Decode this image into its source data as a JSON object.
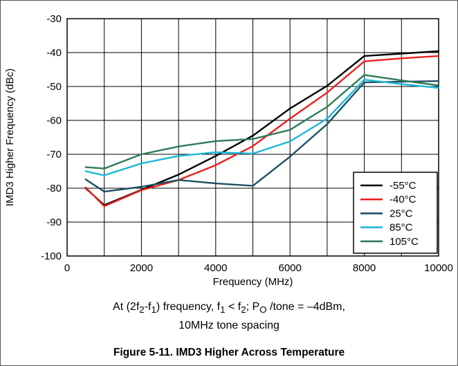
{
  "chart_data": {
    "type": "line",
    "title": "",
    "xlabel": "Frequency (MHz)",
    "ylabel": "IMD3 Higher Frequency (dBc)",
    "xlim": [
      0,
      10000
    ],
    "ylim": [
      -100,
      -30
    ],
    "x_ticks": [
      0,
      2000,
      4000,
      6000,
      8000,
      10000
    ],
    "x_tick_labels": [
      "0",
      "2000",
      "4000",
      "6000",
      "8000",
      "10000"
    ],
    "y_ticks": [
      -100,
      -90,
      -80,
      -70,
      -60,
      -50,
      -40,
      -30
    ],
    "y_tick_labels": [
      "-100",
      "-90",
      "-80",
      "-70",
      "-60",
      "-50",
      "-40",
      "-30"
    ],
    "grid": true,
    "legend_position": "bottom-right",
    "series": [
      {
        "name": "-55°C",
        "color": "#000000",
        "x": [
          500,
          1000,
          2000,
          3000,
          4000,
          5000,
          6000,
          7000,
          8000,
          9000,
          10000
        ],
        "y": [
          -80,
          -85,
          -80.5,
          -76,
          -70.5,
          -64.5,
          -56.5,
          -49.8,
          -41,
          -40.3,
          -39.6
        ]
      },
      {
        "name": "-40°C",
        "color": "#e8201e",
        "x": [
          500,
          1000,
          2000,
          3000,
          4000,
          5000,
          6000,
          7000,
          8000,
          9000,
          10000
        ],
        "y": [
          -79.8,
          -85.3,
          -80.6,
          -77.6,
          -73.2,
          -67.6,
          -59.5,
          -51.8,
          -42.6,
          -41.7,
          -41
        ]
      },
      {
        "name": "25°C",
        "color": "#1d4f63",
        "x": [
          500,
          1000,
          2000,
          3000,
          4000,
          5000,
          6000,
          7000,
          8000,
          9000,
          10000
        ],
        "y": [
          -77.4,
          -81,
          -79.6,
          -77.6,
          -78.6,
          -79.3,
          -70.7,
          -61.1,
          -48.8,
          -48.6,
          -48.4
        ]
      },
      {
        "name": "85°C",
        "color": "#1ab8d8",
        "x": [
          500,
          1000,
          2000,
          3000,
          4000,
          5000,
          6000,
          7000,
          8000,
          9000,
          10000
        ],
        "y": [
          -75,
          -76.2,
          -72.7,
          -70.5,
          -69.4,
          -69.8,
          -66.2,
          -59.5,
          -48,
          -49.3,
          -50.4
        ]
      },
      {
        "name": "105°C",
        "color": "#2f7a57",
        "x": [
          500,
          1000,
          2000,
          3000,
          4000,
          5000,
          6000,
          7000,
          8000,
          9000,
          10000
        ],
        "y": [
          -73.8,
          -74.2,
          -70,
          -67.7,
          -66.1,
          -65.5,
          -62.8,
          -56,
          -46.6,
          -48.2,
          -49.7
        ]
      }
    ]
  },
  "caption": {
    "line1": {
      "a": "At (2f",
      "b": "2",
      "c": "-f",
      "d": "1",
      "e": ") frequency, f",
      "f": "1",
      "g": " < f",
      "h": "2",
      "i": "; P",
      "j": "O",
      "k": " /tone = –4dBm,"
    },
    "line2": "10MHz tone spacing"
  },
  "figure_title": "Figure 5-11. IMD3 Higher Across Temperature"
}
